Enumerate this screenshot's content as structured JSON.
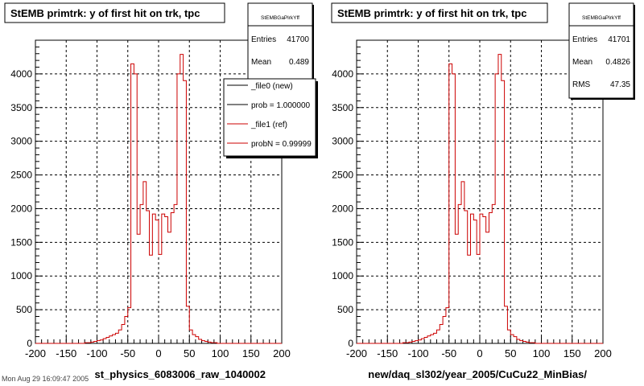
{
  "footer": {
    "text": "Mon Aug 29 16:09:47 2005"
  },
  "chart_data": [
    {
      "type": "step-histogram",
      "title": "StEMB primtrk: y of first hit on trk, tpc",
      "xlabel": "st_physics_6083006_raw_1040002",
      "ylabel": "",
      "xlim": [
        -200,
        200
      ],
      "ylim": [
        0,
        4500
      ],
      "xticks": [
        "-200",
        "-150",
        "-100",
        "-50",
        "0",
        "50",
        "100",
        "150",
        "200"
      ],
      "yticks": [
        "0",
        "500",
        "1000",
        "1500",
        "2000",
        "2500",
        "3000",
        "3500",
        "4000"
      ],
      "grid": true,
      "stats": {
        "name": "StEMBGaPlrkYff",
        "rows": [
          {
            "label": "Entries",
            "value": "41700"
          },
          {
            "label": "Mean",
            "value": "0.489"
          }
        ]
      },
      "legend": [
        {
          "label": "_file0 (new)",
          "color": "#000000"
        },
        {
          "label": "prob = 1.000000",
          "color": "#000000"
        },
        {
          "label": "_file1 (ref)",
          "color": "#cc0000"
        },
        {
          "label": "probN = 0.99999",
          "color": "#cc0000"
        }
      ],
      "bin_width": 5,
      "x_start": -200,
      "series": [
        {
          "color": "#cc0000",
          "values": [
            0,
            0,
            0,
            0,
            0,
            0,
            0,
            0,
            0,
            0,
            0,
            0,
            0,
            0,
            0,
            0,
            10,
            10,
            20,
            30,
            40,
            50,
            70,
            90,
            110,
            130,
            150,
            200,
            280,
            400,
            530,
            4150,
            4000,
            1620,
            2060,
            2400,
            1970,
            1310,
            1920,
            1830,
            1320,
            1920,
            1880,
            1650,
            1940,
            2060,
            4000,
            4290,
            3900,
            550,
            200,
            130,
            100,
            60,
            40,
            30,
            20,
            10,
            10,
            0,
            0,
            0,
            0,
            0,
            0,
            0,
            0,
            0,
            0,
            0,
            0,
            0,
            0,
            0,
            0,
            0,
            0,
            0,
            0,
            0
          ]
        }
      ]
    },
    {
      "type": "step-histogram",
      "title": "StEMB primtrk: y of first hit on trk, tpc",
      "xlabel": "new/daq_sl302/year_2005/CuCu22_MinBias/",
      "ylabel": "",
      "xlim": [
        -200,
        200
      ],
      "ylim": [
        0,
        4500
      ],
      "xticks": [
        "-200",
        "-150",
        "-100",
        "-50",
        "0",
        "50",
        "100",
        "150",
        "200"
      ],
      "yticks": [
        "0",
        "500",
        "1000",
        "1500",
        "2000",
        "2500",
        "3000",
        "3500",
        "4000"
      ],
      "grid": true,
      "stats": {
        "name": "StEMBGaPlrkYff",
        "rows": [
          {
            "label": "Entries",
            "value": "41701"
          },
          {
            "label": "Mean",
            "value": "0.4826"
          },
          {
            "label": "RMS",
            "value": "47.35"
          }
        ]
      },
      "legend": [],
      "bin_width": 5,
      "x_start": -200,
      "series": [
        {
          "color": "#cc0000",
          "values": [
            0,
            0,
            0,
            0,
            0,
            0,
            0,
            0,
            0,
            0,
            0,
            0,
            0,
            0,
            0,
            10,
            10,
            20,
            30,
            40,
            50,
            70,
            90,
            110,
            130,
            150,
            200,
            280,
            400,
            530,
            4150,
            4000,
            1620,
            2060,
            2400,
            1970,
            1310,
            1920,
            1830,
            1320,
            1920,
            1880,
            1650,
            1940,
            2060,
            4000,
            4290,
            3900,
            550,
            200,
            130,
            100,
            60,
            40,
            30,
            20,
            10,
            10,
            0,
            0,
            0,
            0,
            0,
            0,
            0,
            0,
            0,
            0,
            0,
            0,
            0,
            0,
            0,
            0,
            0,
            0,
            0,
            0,
            0,
            0
          ]
        }
      ]
    }
  ]
}
